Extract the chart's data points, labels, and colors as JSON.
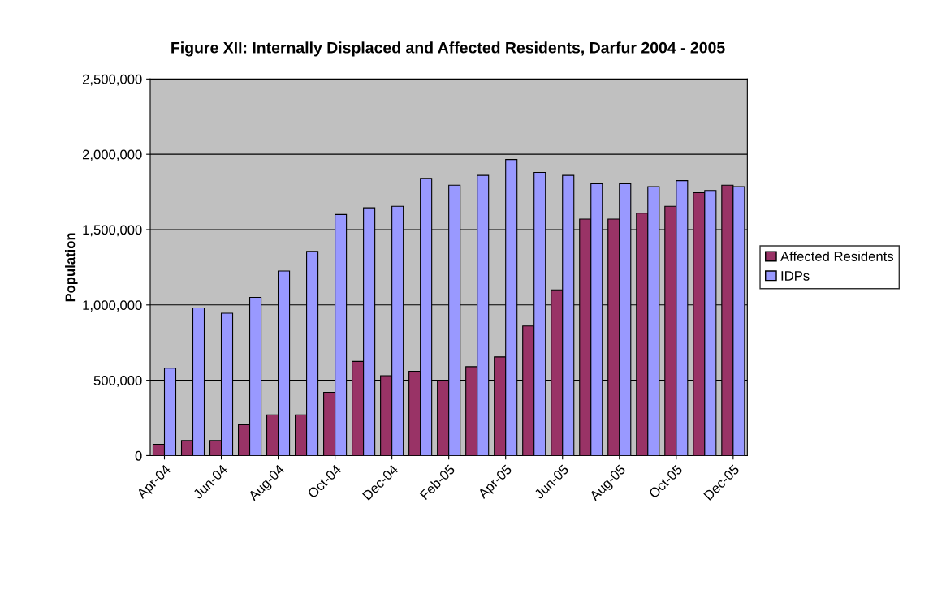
{
  "chart_data": {
    "type": "bar",
    "title": "Figure XII: Internally Displaced and Affected Residents, Darfur 2004 - 2005",
    "ylabel": "Population",
    "categories": [
      "Apr-04",
      null,
      "Jun-04",
      null,
      "Aug-04",
      null,
      "Oct-04",
      null,
      "Dec-04",
      null,
      "Feb-05",
      null,
      "Apr-05",
      null,
      "Jun-05",
      null,
      "Aug-05",
      null,
      "Oct-05",
      null,
      "Dec-05"
    ],
    "series": [
      {
        "name": "Affected Residents",
        "color": "#993366",
        "values": [
          75000,
          100000,
          100000,
          205000,
          270000,
          270000,
          420000,
          625000,
          530000,
          560000,
          495000,
          590000,
          655000,
          860000,
          1100000,
          1570000,
          1570000,
          1610000,
          1655000,
          1745000,
          1795000
        ]
      },
      {
        "name": "IDPs",
        "color": "#9999ff",
        "values": [
          580000,
          980000,
          945000,
          1050000,
          1225000,
          1355000,
          1600000,
          1645000,
          1655000,
          1840000,
          1795000,
          1860000,
          1965000,
          1880000,
          1860000,
          1805000,
          1805000,
          1785000,
          1825000,
          1760000,
          1785000
        ]
      }
    ],
    "ylim": [
      0,
      2500000
    ],
    "yticks": [
      {
        "value": 0,
        "label": "0"
      },
      {
        "value": 500000,
        "label": "500,000"
      },
      {
        "value": 1000000,
        "label": "1,000,000"
      },
      {
        "value": 1500000,
        "label": "1,500,000"
      },
      {
        "value": 2000000,
        "label": "2,000,000"
      },
      {
        "value": 2500000,
        "label": "2,500,000"
      }
    ],
    "grid": "y",
    "legend": "right"
  }
}
